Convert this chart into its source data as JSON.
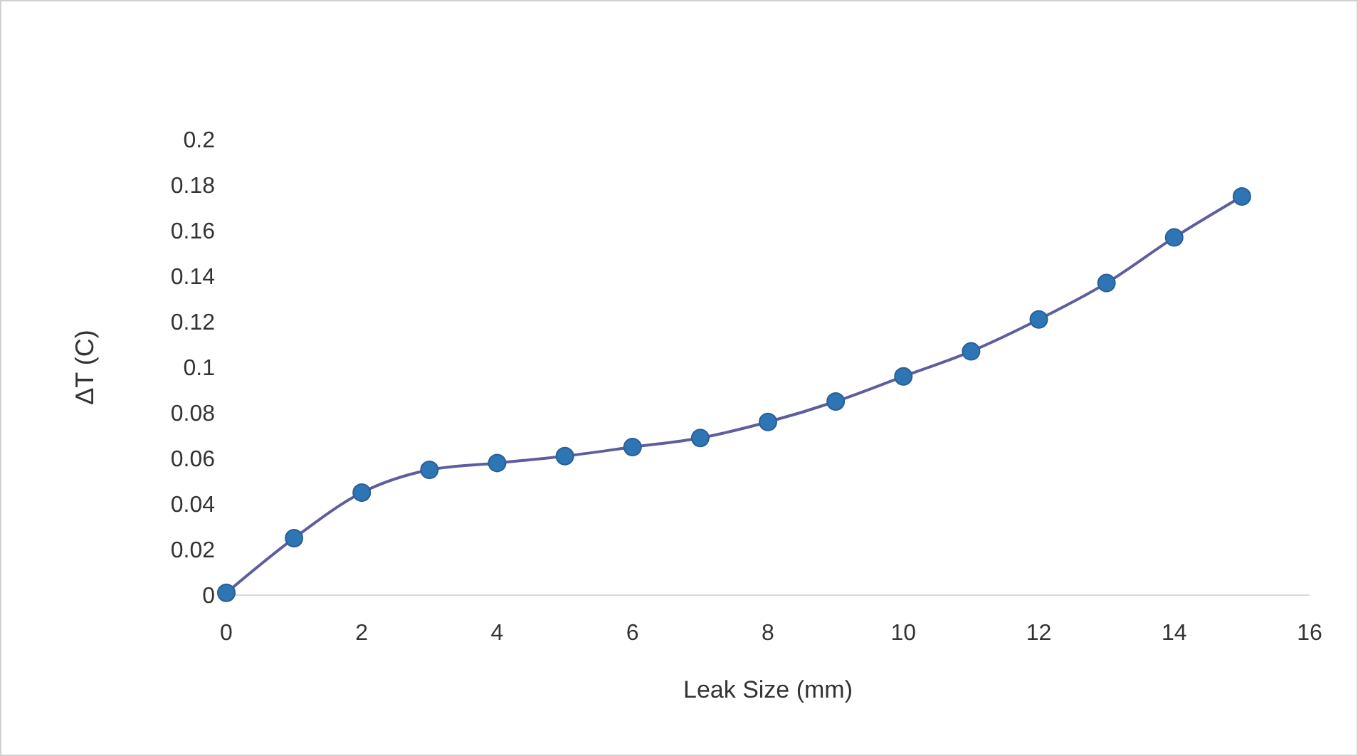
{
  "chart_data": {
    "type": "line",
    "xlabel": "Leak Size (mm)",
    "ylabel": "ΔT  (C)",
    "x": [
      0,
      1,
      2,
      3,
      4,
      5,
      6,
      7,
      8,
      9,
      10,
      11,
      12,
      13,
      14,
      15
    ],
    "series": [
      {
        "color": "#2e75b6",
        "values": [
          0.001,
          0.025,
          0.045,
          0.055,
          0.058,
          0.061,
          0.065,
          0.069,
          0.076,
          0.085,
          0.096,
          0.107,
          0.121,
          0.137,
          0.157,
          0.175
        ]
      }
    ],
    "xlim": [
      0,
      16
    ],
    "xticks": [
      0,
      2,
      4,
      6,
      8,
      10,
      12,
      14,
      16
    ],
    "ylim": [
      0,
      0.2
    ],
    "yticks": [
      0,
      0.02,
      0.04,
      0.06,
      0.08,
      0.1,
      0.12,
      0.14,
      0.16,
      0.18,
      0.2
    ],
    "grid": false,
    "legend": false,
    "marker": "circle",
    "line_style": "solid"
  }
}
